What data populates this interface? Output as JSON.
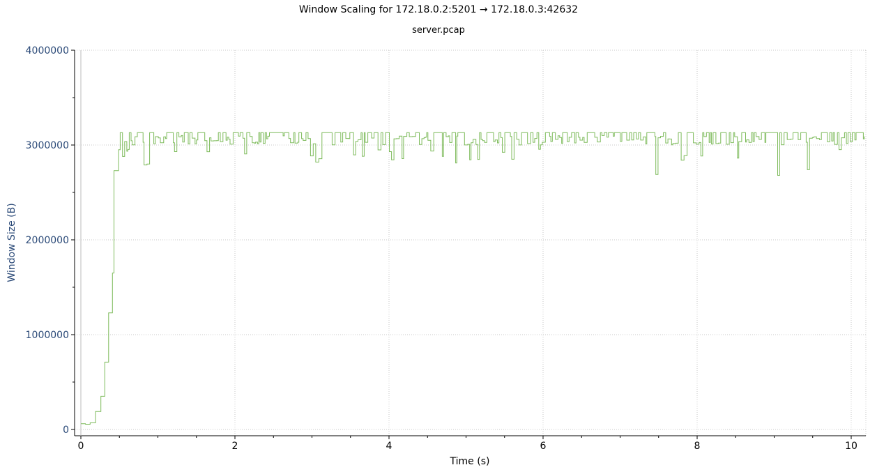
{
  "window_title": "",
  "chart_data": {
    "type": "line",
    "title": "Window Scaling for 172.18.0.2:5201 → 172.18.0.3:42632",
    "subtitle": "server.pcap",
    "xlabel": "Time (s)",
    "ylabel": "Window Size (B)",
    "xlim": [
      -0.05,
      10.2
    ],
    "ylim": [
      -60000,
      4000000
    ],
    "x_ticks": [
      0,
      2,
      4,
      6,
      8,
      10
    ],
    "x_tick_labels": [
      "0",
      "2",
      "4",
      "6",
      "8",
      "10"
    ],
    "y_ticks": [
      0,
      1000000,
      2000000,
      3000000,
      4000000
    ],
    "y_tick_labels": [
      "0",
      "1000000",
      "2000000",
      "3000000",
      "4000000"
    ],
    "grid": true,
    "legend": "none",
    "series_color": "#7cba59",
    "series": [
      {
        "ramp": [
          [
            0.0,
            60000
          ],
          [
            0.06,
            60000
          ],
          [
            0.06,
            55000
          ],
          [
            0.12,
            55000
          ],
          [
            0.12,
            70000
          ],
          [
            0.19,
            70000
          ],
          [
            0.19,
            190000
          ],
          [
            0.26,
            190000
          ],
          [
            0.26,
            350000
          ],
          [
            0.31,
            350000
          ],
          [
            0.31,
            710000
          ],
          [
            0.36,
            710000
          ],
          [
            0.36,
            1230000
          ],
          [
            0.41,
            1230000
          ],
          [
            0.41,
            1650000
          ],
          [
            0.43,
            1650000
          ],
          [
            0.43,
            2730000
          ],
          [
            0.49,
            2730000
          ],
          [
            0.49,
            2950000
          ],
          [
            0.51,
            2950000
          ],
          [
            0.51,
            3130000
          ]
        ],
        "steady": {
          "x_start": 0.51,
          "x_end": 10.17,
          "high": 3130000,
          "typical_low": 3000000,
          "min_dips": [
            [
              0.83,
              2790000
            ],
            [
              0.88,
              2800000
            ],
            [
              3.05,
              2820000
            ],
            [
              4.87,
              2810000
            ],
            [
              7.47,
              2690000
            ],
            [
              7.8,
              2840000
            ],
            [
              9.05,
              2680000
            ],
            [
              9.45,
              2740000
            ]
          ]
        }
      }
    ]
  }
}
